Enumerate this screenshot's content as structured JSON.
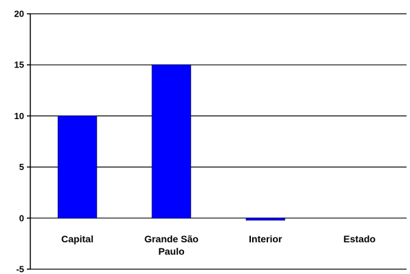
{
  "chart_data": {
    "type": "bar",
    "title": "",
    "xlabel": "",
    "ylabel": "",
    "categories": [
      "Capital",
      "Grande São Paulo",
      "Interior",
      "Estado"
    ],
    "category_lines": [
      [
        "Capital"
      ],
      [
        "Grande São",
        "Paulo"
      ],
      [
        "Interior"
      ],
      [
        "Estado"
      ]
    ],
    "values": [
      10,
      15,
      -0.2,
      0
    ],
    "ylim": [
      -5,
      20
    ],
    "yticks": [
      "20",
      "15",
      "10",
      "5",
      "0",
      "-5"
    ],
    "ytick_values": [
      20,
      15,
      10,
      5,
      0,
      -5
    ],
    "grid": true,
    "legend": "none",
    "colors": {
      "bar": "#0000ff",
      "bar_edge": "#000080",
      "grid": "#000000",
      "axis": "#000000"
    }
  }
}
